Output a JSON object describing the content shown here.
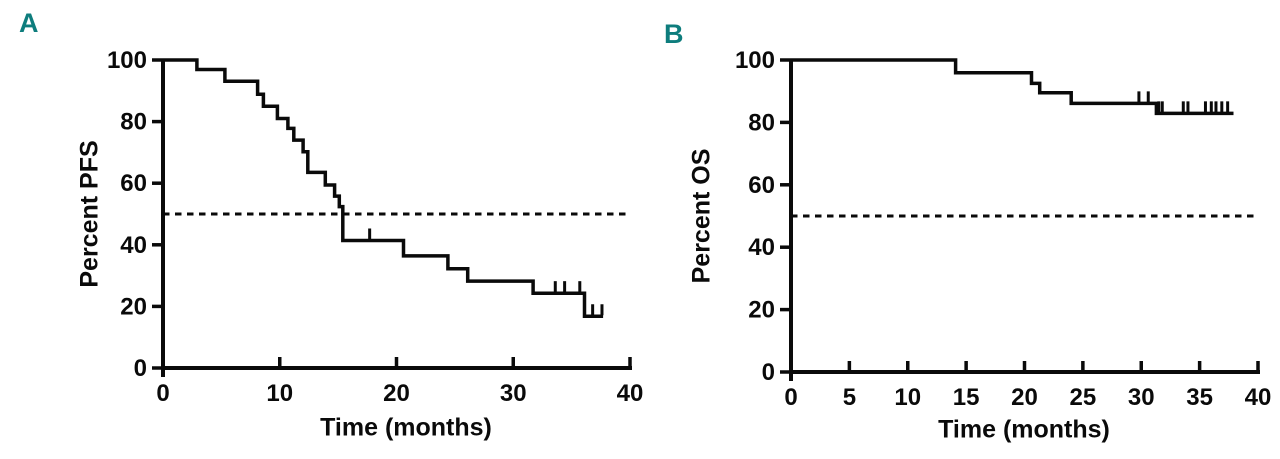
{
  "figure": {
    "background": "#ffffff",
    "ink": "#0a0a0a",
    "accent_teal": "#0e7d7d"
  },
  "chart_data": [
    {
      "type": "line",
      "subtype": "kaplan-meier-step",
      "panel_label": "A",
      "ylabel": "Percent PFS",
      "xlabel": "Time (months)",
      "xlim": [
        0,
        40
      ],
      "ylim": [
        0,
        100
      ],
      "x_ticks": [
        0,
        10,
        20,
        30,
        40
      ],
      "y_ticks": [
        0,
        20,
        40,
        60,
        80,
        100
      ],
      "grid": false,
      "legend": "none",
      "reference_line": {
        "y": 50,
        "style": "dashed"
      },
      "steps": [
        [
          0,
          100
        ],
        [
          2.9,
          100
        ],
        [
          2.9,
          96.9
        ],
        [
          5.3,
          96.9
        ],
        [
          5.3,
          93.1
        ],
        [
          8.1,
          93.1
        ],
        [
          8.1,
          88.9
        ],
        [
          8.6,
          88.9
        ],
        [
          8.6,
          85.0
        ],
        [
          9.8,
          85.0
        ],
        [
          9.8,
          81.0
        ],
        [
          10.7,
          81.0
        ],
        [
          10.7,
          77.8
        ],
        [
          11.2,
          77.8
        ],
        [
          11.2,
          74.0
        ],
        [
          12.0,
          74.0
        ],
        [
          12.0,
          70.2
        ],
        [
          12.4,
          70.2
        ],
        [
          12.4,
          63.5
        ],
        [
          13.9,
          63.5
        ],
        [
          13.9,
          59.4
        ],
        [
          14.7,
          59.4
        ],
        [
          14.7,
          55.8
        ],
        [
          15.1,
          55.8
        ],
        [
          15.1,
          52.4
        ],
        [
          15.4,
          52.4
        ],
        [
          15.4,
          41.4
        ],
        [
          20.6,
          41.4
        ],
        [
          20.6,
          36.4
        ],
        [
          24.4,
          36.4
        ],
        [
          24.4,
          32.2
        ],
        [
          26.1,
          32.2
        ],
        [
          26.1,
          28.2
        ],
        [
          31.7,
          28.2
        ],
        [
          31.7,
          24.3
        ],
        [
          36.1,
          24.3
        ],
        [
          36.1,
          16.8
        ],
        [
          37.7,
          16.8
        ]
      ],
      "censor_marks": [
        [
          17.7,
          41.4
        ],
        [
          33.6,
          24.3
        ],
        [
          34.4,
          24.3
        ],
        [
          35.7,
          24.3
        ],
        [
          36.8,
          16.8
        ],
        [
          37.6,
          16.8
        ]
      ]
    },
    {
      "type": "line",
      "subtype": "kaplan-meier-step",
      "panel_label": "B",
      "ylabel": "Percent OS",
      "xlabel": "Time (months)",
      "xlim": [
        0,
        40
      ],
      "ylim": [
        0,
        100
      ],
      "x_ticks": [
        0,
        5,
        10,
        15,
        20,
        25,
        30,
        35,
        40
      ],
      "y_ticks": [
        0,
        20,
        40,
        60,
        80,
        100
      ],
      "grid": false,
      "legend": "none",
      "reference_line": {
        "y": 50,
        "style": "dashed"
      },
      "steps": [
        [
          0,
          100
        ],
        [
          14.1,
          100
        ],
        [
          14.1,
          95.9
        ],
        [
          20.6,
          95.9
        ],
        [
          20.6,
          92.5
        ],
        [
          21.3,
          92.5
        ],
        [
          21.3,
          89.5
        ],
        [
          24.0,
          89.5
        ],
        [
          24.0,
          86.1
        ],
        [
          31.3,
          86.1
        ],
        [
          31.3,
          82.9
        ],
        [
          37.9,
          82.9
        ]
      ],
      "censor_marks": [
        [
          29.8,
          86.1
        ],
        [
          30.6,
          86.1
        ],
        [
          31.5,
          82.9
        ],
        [
          31.8,
          82.9
        ],
        [
          33.6,
          82.9
        ],
        [
          34.0,
          82.9
        ],
        [
          35.5,
          82.9
        ],
        [
          36.0,
          82.9
        ],
        [
          36.4,
          82.9
        ],
        [
          36.9,
          82.9
        ],
        [
          37.4,
          82.9
        ]
      ]
    }
  ]
}
